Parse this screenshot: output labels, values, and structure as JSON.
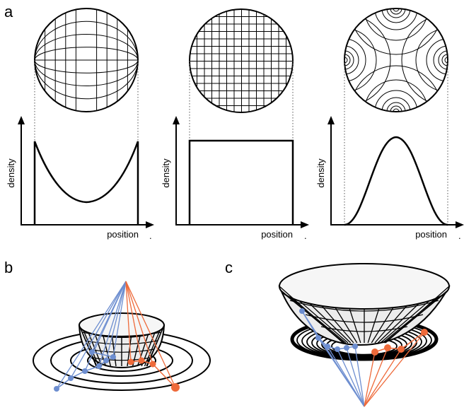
{
  "panel_labels": {
    "a": "a",
    "b": "b",
    "c": "c"
  },
  "plots": [
    {
      "ylabel": "density",
      "xlabel": "position",
      "end_mark": "."
    },
    {
      "ylabel": "density",
      "xlabel": "position",
      "end_mark": "."
    },
    {
      "ylabel": "density",
      "xlabel": "position",
      "end_mark": "."
    }
  ],
  "colors": {
    "blue": "#6d8ed0",
    "orange": "#ee6a3a",
    "line": "#000000",
    "surface": "#ececec"
  }
}
